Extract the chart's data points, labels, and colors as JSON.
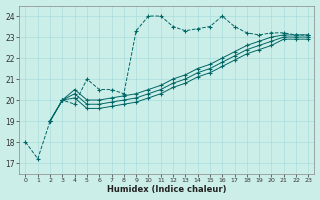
{
  "xlabel": "Humidex (Indice chaleur)",
  "bg_color": "#cceee8",
  "line_color": "#006666",
  "grid_color": "#aadddd",
  "xlim": [
    -0.5,
    23.5
  ],
  "ylim": [
    16.5,
    24.5
  ],
  "yticks": [
    17,
    18,
    19,
    20,
    21,
    22,
    23,
    24
  ],
  "xticks": [
    0,
    1,
    2,
    3,
    4,
    5,
    6,
    7,
    8,
    9,
    10,
    11,
    12,
    13,
    14,
    15,
    16,
    17,
    18,
    19,
    20,
    21,
    22,
    23
  ],
  "series": [
    {
      "x": [
        0,
        1,
        2,
        3,
        4,
        5,
        6,
        7,
        8,
        9,
        10,
        11,
        12,
        13,
        14,
        15,
        16,
        17,
        18,
        19,
        20,
        21,
        22,
        23
      ],
      "y": [
        18.0,
        17.2,
        19.0,
        20.0,
        19.8,
        21.0,
        20.5,
        20.5,
        20.3,
        23.3,
        24.0,
        24.0,
        23.5,
        23.3,
        23.4,
        23.5,
        24.0,
        23.5,
        23.2,
        23.1,
        23.2,
        23.2,
        23.1,
        23.1
      ],
      "dashed": true
    },
    {
      "x": [
        2,
        3,
        4,
        5,
        6,
        7,
        8,
        9,
        10,
        11,
        12,
        13,
        14,
        15,
        16,
        17,
        18,
        19,
        20,
        21,
        22,
        23
      ],
      "y": [
        19.0,
        20.0,
        20.5,
        20.0,
        20.0,
        20.1,
        20.2,
        20.3,
        20.5,
        20.7,
        21.0,
        21.2,
        21.5,
        21.7,
        22.0,
        22.3,
        22.6,
        22.8,
        23.0,
        23.1,
        23.1,
        23.1
      ],
      "dashed": false
    },
    {
      "x": [
        2,
        3,
        4,
        5,
        6,
        7,
        8,
        9,
        10,
        11,
        12,
        13,
        14,
        15,
        16,
        17,
        18,
        19,
        20,
        21,
        22,
        23
      ],
      "y": [
        19.0,
        20.0,
        20.3,
        19.8,
        19.8,
        19.9,
        20.0,
        20.1,
        20.3,
        20.5,
        20.8,
        21.0,
        21.3,
        21.5,
        21.8,
        22.1,
        22.4,
        22.6,
        22.8,
        23.0,
        23.0,
        23.0
      ],
      "dashed": false
    },
    {
      "x": [
        2,
        3,
        4,
        5,
        6,
        7,
        8,
        9,
        10,
        11,
        12,
        13,
        14,
        15,
        16,
        17,
        18,
        19,
        20,
        21,
        22,
        23
      ],
      "y": [
        19.0,
        20.0,
        20.1,
        19.6,
        19.6,
        19.7,
        19.8,
        19.9,
        20.1,
        20.3,
        20.6,
        20.8,
        21.1,
        21.3,
        21.6,
        21.9,
        22.2,
        22.4,
        22.6,
        22.9,
        22.9,
        22.9
      ],
      "dashed": false
    }
  ]
}
